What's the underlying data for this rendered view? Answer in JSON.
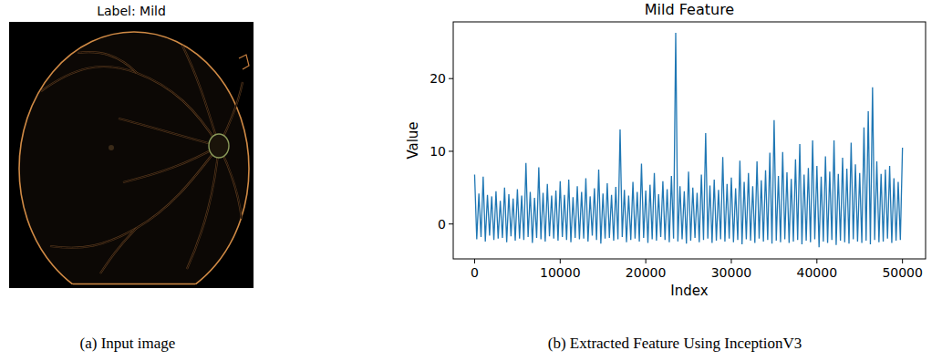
{
  "chart_data": {
    "type": "line",
    "title": "Mild Feature",
    "xlabel": "Index",
    "ylabel": "Value",
    "caption": "(b) Extracted Feature Using InceptionV3",
    "color": "#1f77b4",
    "grid": false,
    "xlim": [
      -2500,
      52700
    ],
    "ylim": [
      -4.8,
      27.8
    ],
    "xticks": [
      0,
      10000,
      20000,
      30000,
      40000,
      50000
    ],
    "yticks": [
      0,
      10,
      20
    ],
    "x": [
      0,
      250,
      500,
      750,
      1000,
      1250,
      1500,
      1750,
      2000,
      2250,
      2500,
      2750,
      3000,
      3250,
      3500,
      3750,
      4000,
      4250,
      4500,
      4750,
      5000,
      5250,
      5500,
      5750,
      6000,
      6250,
      6500,
      6750,
      7000,
      7250,
      7500,
      7750,
      8000,
      8250,
      8500,
      8750,
      9000,
      9250,
      9500,
      9750,
      10000,
      10250,
      10500,
      10750,
      11000,
      11250,
      11500,
      11750,
      12000,
      12250,
      12500,
      12750,
      13000,
      13250,
      13500,
      13750,
      14000,
      14250,
      14500,
      14750,
      15000,
      15250,
      15500,
      15750,
      16000,
      16250,
      16500,
      16750,
      17000,
      17250,
      17500,
      17750,
      18000,
      18250,
      18500,
      18750,
      19000,
      19250,
      19500,
      19750,
      20000,
      20250,
      20500,
      20750,
      21000,
      21250,
      21500,
      21750,
      22000,
      22250,
      22500,
      22750,
      23000,
      23250,
      23500,
      23750,
      24000,
      24250,
      24500,
      24750,
      25000,
      25250,
      25500,
      25750,
      26000,
      26250,
      26500,
      26750,
      27000,
      27250,
      27500,
      27750,
      28000,
      28250,
      28500,
      28750,
      29000,
      29250,
      29500,
      29750,
      30000,
      30250,
      30500,
      30750,
      31000,
      31250,
      31500,
      31750,
      32000,
      32250,
      32500,
      32750,
      33000,
      33250,
      33500,
      33750,
      34000,
      34250,
      34500,
      34750,
      35000,
      35250,
      35500,
      35750,
      36000,
      36250,
      36500,
      36750,
      37000,
      37250,
      37500,
      37750,
      38000,
      38250,
      38500,
      38750,
      39000,
      39250,
      39500,
      39750,
      40000,
      40250,
      40500,
      40750,
      41000,
      41250,
      41500,
      41750,
      42000,
      42250,
      42500,
      42750,
      43000,
      43250,
      43500,
      43750,
      44000,
      44250,
      44500,
      44750,
      45000,
      45250,
      45500,
      45750,
      46000,
      46250,
      46500,
      46750,
      47000,
      47250,
      47500,
      47750,
      48000,
      48250,
      48500,
      48750,
      49000,
      49250,
      49500,
      49750,
      50000
    ],
    "values": [
      6.8,
      -2.1,
      4.2,
      -1.8,
      6.5,
      -2.4,
      4.0,
      -1.6,
      3.8,
      -2.2,
      4.5,
      -2.0,
      3.2,
      -1.9,
      5.0,
      -2.5,
      4.1,
      -1.7,
      3.5,
      -2.3,
      4.8,
      -2.0,
      3.9,
      -2.2,
      8.4,
      -1.8,
      4.4,
      -2.6,
      3.6,
      -1.9,
      7.8,
      -2.1,
      4.3,
      -2.4,
      5.5,
      -1.7,
      3.9,
      -2.0,
      4.6,
      -2.3,
      5.9,
      -1.8,
      4.0,
      -2.2,
      6.1,
      -2.5,
      3.7,
      -1.9,
      5.2,
      -2.1,
      4.4,
      -2.0,
      6.3,
      -2.4,
      3.8,
      -1.6,
      4.9,
      -2.2,
      7.5,
      -2.7,
      4.2,
      -2.0,
      5.6,
      -1.9,
      4.0,
      -2.3,
      5.1,
      -2.1,
      13.0,
      -1.8,
      4.7,
      -2.5,
      3.9,
      -2.2,
      5.8,
      -2.0,
      4.4,
      -2.4,
      8.3,
      -1.9,
      4.6,
      -2.6,
      5.4,
      -2.1,
      7.0,
      -2.3,
      4.1,
      -1.8,
      5.9,
      -2.2,
      4.8,
      -2.5,
      6.6,
      -2.0,
      26.3,
      -2.4,
      5.2,
      -2.1,
      4.5,
      -2.7,
      7.2,
      -2.3,
      5.0,
      -1.9,
      4.3,
      -2.5,
      6.8,
      -2.2,
      12.5,
      -2.0,
      5.3,
      -2.6,
      6.1,
      -2.3,
      4.7,
      -2.1,
      9.2,
      -2.4,
      5.5,
      -2.0,
      6.4,
      -2.5,
      4.9,
      -2.2,
      8.7,
      -2.8,
      5.8,
      -2.1,
      7.0,
      -2.3,
      5.2,
      -2.6,
      8.6,
      -2.0,
      6.0,
      -2.4,
      7.4,
      -2.2,
      9.8,
      -2.7,
      14.3,
      -2.3,
      6.6,
      -2.5,
      9.9,
      -2.1,
      7.1,
      -2.6,
      6.2,
      -2.4,
      8.9,
      -2.2,
      11.0,
      -2.8,
      6.8,
      -2.3,
      7.7,
      -2.5,
      11.5,
      -2.1,
      8.0,
      -3.2,
      6.5,
      -2.4,
      9.3,
      -2.6,
      7.2,
      -2.2,
      11.5,
      -2.9,
      6.9,
      -2.3,
      9.1,
      -2.5,
      7.6,
      -2.7,
      11.2,
      -2.1,
      8.2,
      -2.4,
      7.0,
      -2.6,
      13.3,
      -2.3,
      15.5,
      -2.8,
      18.8,
      -2.2,
      8.6,
      -2.5,
      6.9,
      -2.4,
      7.5,
      -2.0,
      8.0,
      -2.6,
      6.3,
      -2.3,
      5.8,
      -2.2,
      10.5
    ]
  },
  "image_panel": {
    "title": "Label: Mild",
    "caption": "(a) Input image"
  }
}
